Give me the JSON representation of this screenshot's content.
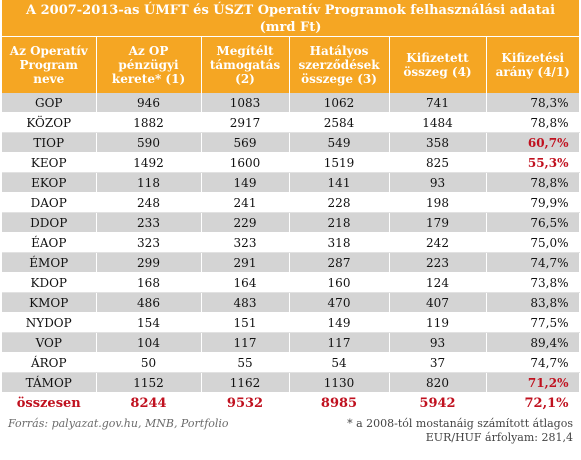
{
  "title": "A 2007-2013-as ÚMFT és ÚSZT Operatív Programok felhasználási adatai (mrd Ft)",
  "headers": [
    "Az Operatív Program neve",
    "Az OP pénzügyi kerete* (1)",
    "Megítélt támogatás (2)",
    "Hatályos szerződések összege (3)",
    "Kifizetett összeg (4)",
    "Kifizetési arány (4/1)"
  ],
  "rows": [
    {
      "name": "GOP",
      "keret": "946",
      "megitelt": "1083",
      "hatalyos": "1062",
      "kifizetett": "741",
      "arany": "78,3%"
    },
    {
      "name": "KÖZOP",
      "keret": "1882",
      "megitelt": "2917",
      "hatalyos": "2584",
      "kifizetett": "1484",
      "arany": "78,8%"
    },
    {
      "name": "TIOP",
      "keret": "590",
      "megitelt": "569",
      "hatalyos": "549",
      "kifizetett": "358",
      "arany": "60,7%"
    },
    {
      "name": "KEOP",
      "keret": "1492",
      "megitelt": "1600",
      "hatalyos": "1519",
      "kifizetett": "825",
      "arany": "55,3%"
    },
    {
      "name": "EKOP",
      "keret": "118",
      "megitelt": "149",
      "hatalyos": "141",
      "kifizetett": "93",
      "arany": "78,8%"
    },
    {
      "name": "DAOP",
      "keret": "248",
      "megitelt": "241",
      "hatalyos": "228",
      "kifizetett": "198",
      "arany": "79,9%"
    },
    {
      "name": "DDOP",
      "keret": "233",
      "megitelt": "229",
      "hatalyos": "218",
      "kifizetett": "179",
      "arany": "76,5%"
    },
    {
      "name": "ÉAOP",
      "keret": "323",
      "megitelt": "323",
      "hatalyos": "318",
      "kifizetett": "242",
      "arany": "75,0%"
    },
    {
      "name": "ÉMOP",
      "keret": "299",
      "megitelt": "291",
      "hatalyos": "287",
      "kifizetett": "223",
      "arany": "74,7%"
    },
    {
      "name": "KDOP",
      "keret": "168",
      "megitelt": "164",
      "hatalyos": "160",
      "kifizetett": "124",
      "arany": "73,8%"
    },
    {
      "name": "KMOP",
      "keret": "486",
      "megitelt": "483",
      "hatalyos": "470",
      "kifizetett": "407",
      "arany": "83,8%"
    },
    {
      "name": "NYDOP",
      "keret": "154",
      "megitelt": "151",
      "hatalyos": "149",
      "kifizetett": "119",
      "arany": "77,5%"
    },
    {
      "name": "VOP",
      "keret": "104",
      "megitelt": "117",
      "hatalyos": "117",
      "kifizetett": "93",
      "arany": "89,4%"
    },
    {
      "name": "ÁROP",
      "keret": "50",
      "megitelt": "55",
      "hatalyos": "54",
      "kifizetett": "37",
      "arany": "74,7%"
    },
    {
      "name": "TÁMOP",
      "keret": "1152",
      "megitelt": "1162",
      "hatalyos": "1130",
      "kifizetett": "820",
      "arany": "71,2%"
    }
  ],
  "total": {
    "name": "összesen",
    "keret": "8244",
    "megitelt": "9532",
    "hatalyos": "8985",
    "kifizetett": "5942",
    "arany": "72,1%"
  },
  "source": "Forrás: palyazat.gov.hu, MNB, Portfolio",
  "note_line1": "* a 2008-tól mostanáig számított átlagos",
  "note_line2": "EUR/HUF árfolyam: 281,4",
  "colors": {
    "header_bg": "#f5a623",
    "shade_row": "#d4d4d4",
    "highlight_red": "#c0111f"
  }
}
